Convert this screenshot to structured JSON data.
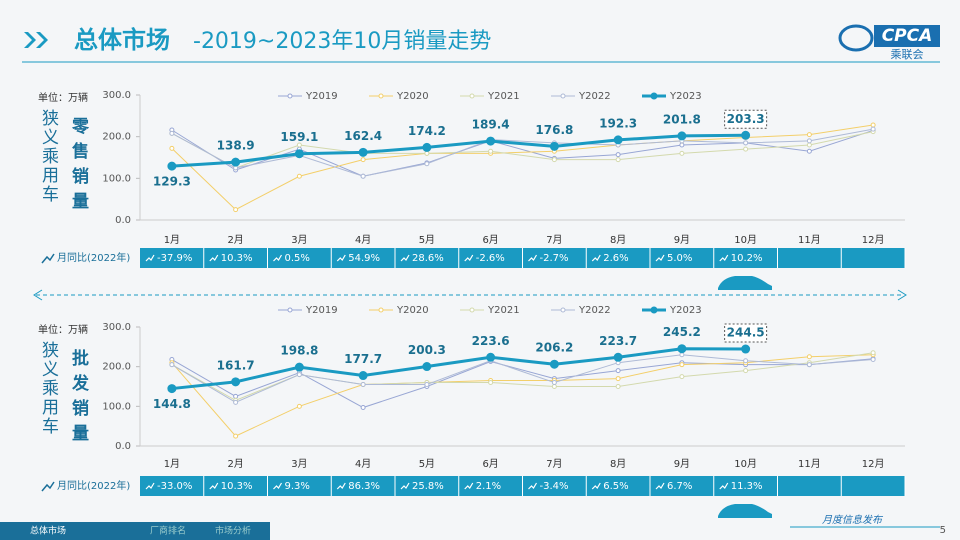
{
  "header": {
    "title": "总体市场",
    "subtitle": "-2019~2023年10月销量走势",
    "logo": "CPCA",
    "logo_sub": "乘联会"
  },
  "chart_data": [
    {
      "type": "line",
      "unit": "单位：万辆",
      "side_label": "狭义乘用车",
      "title": "零售销量",
      "categories": [
        "1月",
        "2月",
        "3月",
        "4月",
        "5月",
        "6月",
        "7月",
        "8月",
        "9月",
        "10月",
        "11月",
        "12月"
      ],
      "series": [
        {
          "name": "Y2019",
          "color": "#98a6d4",
          "values": [
            216,
            120,
            170,
            105,
            137,
            190,
            148,
            157,
            180,
            185,
            165,
            215
          ]
        },
        {
          "name": "Y2020",
          "color": "#f3cf6a",
          "values": [
            172,
            25,
            105,
            145,
            160,
            160,
            165,
            180,
            190,
            198,
            205,
            228
          ]
        },
        {
          "name": "Y2021",
          "color": "#d3d9ad",
          "values": [
            208,
            125,
            180,
            160,
            160,
            165,
            145,
            145,
            160,
            170,
            180,
            212
          ]
        },
        {
          "name": "Y2022",
          "color": "#aebad6",
          "values": [
            208,
            125,
            155,
            105,
            135,
            193,
            185,
            180,
            190,
            185,
            190,
            218
          ]
        },
        {
          "name": "Y2023",
          "color": "#1a9ac2",
          "values": [
            129.3,
            138.9,
            159.1,
            162.4,
            174.2,
            189.4,
            176.8,
            192.3,
            201.8,
            203.3,
            null,
            null
          ]
        }
      ],
      "ylim": [
        0,
        300
      ],
      "yticks": [
        {
          "value": 0,
          "label": "0.0"
        },
        {
          "value": 100,
          "label": "100.0"
        },
        {
          "value": 200,
          "label": "200.0"
        },
        {
          "value": 300,
          "label": "300.0"
        }
      ],
      "yoy_label": "月同比(2022年)",
      "yoy": [
        "-37.9%",
        "10.3%",
        "0.5%",
        "54.9%",
        "28.6%",
        "-2.6%",
        "-2.7%",
        "2.6%",
        "5.0%",
        "10.2%"
      ]
    },
    {
      "type": "line",
      "unit": "单位：万辆",
      "side_label": "狭义乘用车",
      "title": "批发销量",
      "categories": [
        "1月",
        "2月",
        "3月",
        "4月",
        "5月",
        "6月",
        "7月",
        "8月",
        "9月",
        "10月",
        "11月",
        "12月"
      ],
      "series": [
        {
          "name": "Y2019",
          "color": "#98a6d4",
          "values": [
            218,
            125,
            185,
            97,
            150,
            213,
            170,
            190,
            210,
            205,
            205,
            220
          ]
        },
        {
          "name": "Y2020",
          "color": "#f3cf6a",
          "values": [
            210,
            25,
            100,
            155,
            160,
            165,
            165,
            170,
            205,
            210,
            225,
            230
          ]
        },
        {
          "name": "Y2021",
          "color": "#d3d9ad",
          "values": [
            205,
            115,
            180,
            155,
            160,
            160,
            150,
            150,
            175,
            190,
            210,
            235
          ]
        },
        {
          "name": "Y2022",
          "color": "#aebad6",
          "values": [
            205,
            110,
            180,
            155,
            155,
            215,
            160,
            210,
            230,
            215,
            205,
            218
          ]
        },
        {
          "name": "Y2023",
          "color": "#1a9ac2",
          "values": [
            144.8,
            161.7,
            198.8,
            177.7,
            200.3,
            223.6,
            206.2,
            223.7,
            245.2,
            244.5,
            null,
            null
          ]
        }
      ],
      "ylim": [
        0,
        300
      ],
      "yticks": [
        {
          "value": 0,
          "label": "0.0"
        },
        {
          "value": 100,
          "label": "100.0"
        },
        {
          "value": 200,
          "label": "200.0"
        },
        {
          "value": 300,
          "label": "300.0"
        }
      ],
      "yoy_label": "月同比(2022年)",
      "yoy": [
        "-33.0%",
        "10.3%",
        "9.3%",
        "86.3%",
        "25.8%",
        "2.1%",
        "-3.4%",
        "6.5%",
        "6.7%",
        "11.3%"
      ]
    }
  ],
  "footer": {
    "tabs": [
      "总体市场",
      "厂商排名",
      "市场分析"
    ],
    "note": "月度信息发布",
    "page": "5"
  }
}
